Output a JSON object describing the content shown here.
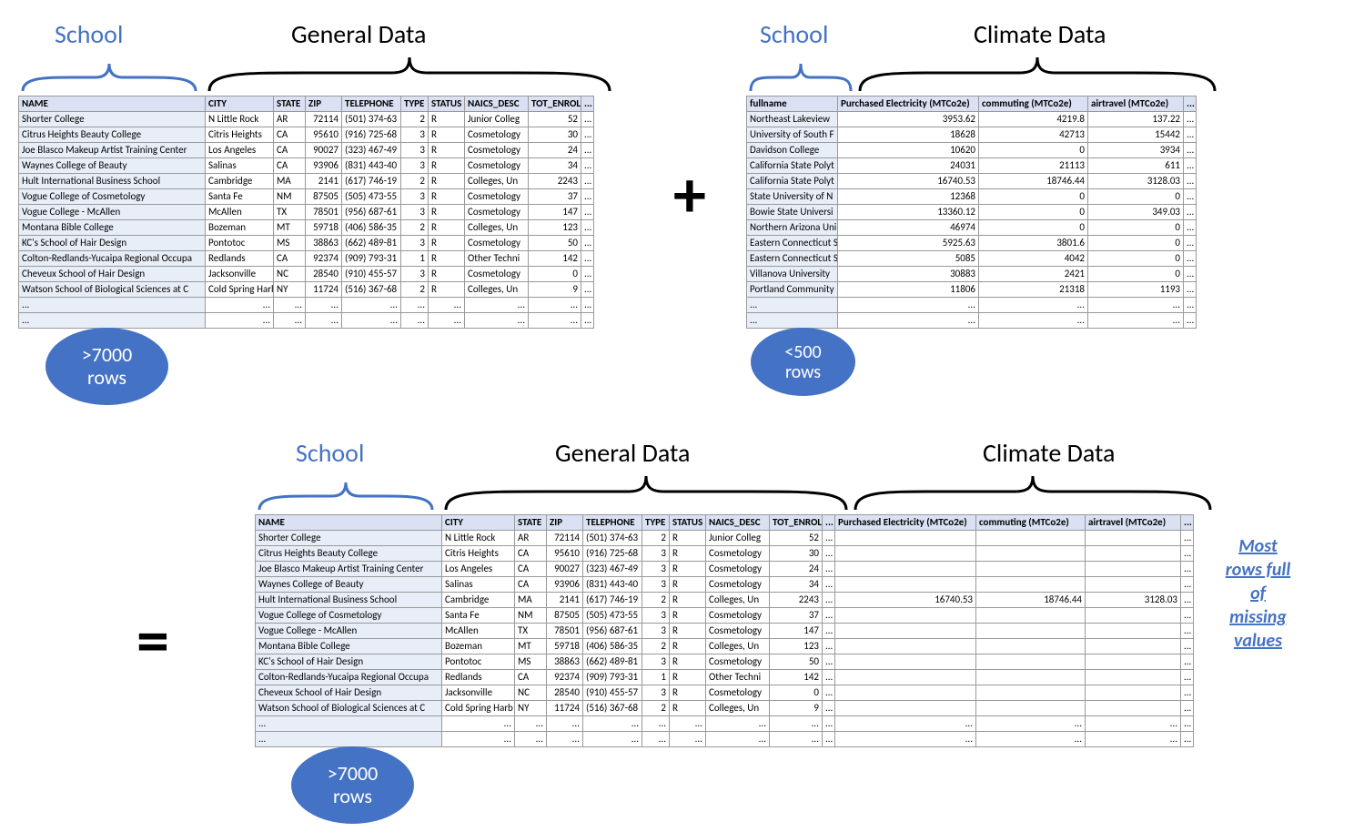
{
  "colors": {
    "accent": "#4472c4",
    "header_bg": "#d9e1f2",
    "name_bg": "#e8eef7",
    "border": "#999999",
    "text": "#000000"
  },
  "labels": {
    "school": "School",
    "general": "General Data",
    "climate": "Climate Data"
  },
  "ovals": {
    "gt7000": ">7000\nrows",
    "lt500": "<500\nrows"
  },
  "callout": "Most\nrows full\nof\nmissing\nvalues",
  "ops": {
    "plus": "+",
    "equals": "="
  },
  "general_table": {
    "headers": [
      "NAME",
      "CITY",
      "STATE",
      "ZIP",
      "TELEPHONE",
      "TYPE",
      "STATUS",
      "NAICS_DESC",
      "TOT_ENROLL",
      "..."
    ],
    "widths": [
      205,
      75,
      35,
      40,
      65,
      30,
      40,
      70,
      58,
      14
    ],
    "rows": [
      [
        "Shorter College",
        "N Little Rock",
        "AR",
        "72114",
        "(501) 374-63",
        "2",
        "R",
        "Junior Colleg",
        "52",
        "..."
      ],
      [
        "Citrus Heights Beauty College",
        "Citris Heights",
        "CA",
        "95610",
        "(916) 725-68",
        "3",
        "R",
        "Cosmetology",
        "30",
        "..."
      ],
      [
        "Joe Blasco Makeup Artist Training Center",
        "Los Angeles",
        "CA",
        "90027",
        "(323) 467-49",
        "3",
        "R",
        "Cosmetology",
        "24",
        "..."
      ],
      [
        "Waynes College of Beauty",
        "Salinas",
        "CA",
        "93906",
        "(831) 443-40",
        "3",
        "R",
        "Cosmetology",
        "34",
        "..."
      ],
      [
        "Hult International Business School",
        "Cambridge",
        "MA",
        "2141",
        "(617) 746-19",
        "2",
        "R",
        "Colleges, Un",
        "2243",
        "..."
      ],
      [
        "Vogue College of Cosmetology",
        "Santa Fe",
        "NM",
        "87505",
        "(505) 473-55",
        "3",
        "R",
        "Cosmetology",
        "37",
        "..."
      ],
      [
        "Vogue College - McAllen",
        "McAllen",
        "TX",
        "78501",
        "(956) 687-61",
        "3",
        "R",
        "Cosmetology",
        "147",
        "..."
      ],
      [
        "Montana Bible College",
        "Bozeman",
        "MT",
        "59718",
        "(406) 586-35",
        "2",
        "R",
        "Colleges, Un",
        "123",
        "..."
      ],
      [
        "KC's School of Hair Design",
        "Pontotoc",
        "MS",
        "38863",
        "(662) 489-81",
        "3",
        "R",
        "Cosmetology",
        "50",
        "..."
      ],
      [
        "Colton-Redlands-Yucaipa Regional Occupa",
        "Redlands",
        "CA",
        "92374",
        "(909) 793-31",
        "1",
        "R",
        "Other Techni",
        "142",
        "..."
      ],
      [
        "Cheveux School of Hair Design",
        "Jacksonville",
        "NC",
        "28540",
        "(910) 455-57",
        "3",
        "R",
        "Cosmetology",
        "0",
        "..."
      ],
      [
        "Watson School of Biological Sciences at C",
        "Cold Spring Harb",
        "NY",
        "11724",
        "(516) 367-68",
        "2",
        "R",
        "Colleges, Un",
        "9",
        "..."
      ],
      [
        "...",
        "...",
        "...",
        "...",
        "...",
        "...",
        "...",
        "...",
        "...",
        "..."
      ],
      [
        "...",
        "...",
        "...",
        "...",
        "...",
        "...",
        "...",
        "...",
        "...",
        "..."
      ]
    ]
  },
  "climate_table": {
    "headers": [
      "fullname",
      "Purchased Electricity (MTCo2e)",
      "commuting (MTCo2e)",
      "airtravel (MTCo2e)",
      "..."
    ],
    "widths": [
      100,
      155,
      120,
      105,
      14
    ],
    "rows": [
      [
        "Northeast Lakeview",
        "3953.62",
        "4219.8",
        "137.22",
        "..."
      ],
      [
        "University of South F",
        "18628",
        "42713",
        "15442",
        "..."
      ],
      [
        "Davidson College",
        "10620",
        "0",
        "3934",
        "..."
      ],
      [
        "California State Polyt",
        "24031",
        "21113",
        "611",
        "..."
      ],
      [
        "California State Polyt",
        "16740.53",
        "18746.44",
        "3128.03",
        "..."
      ],
      [
        "State University of N",
        "12368",
        "0",
        "0",
        "..."
      ],
      [
        "Bowie State Universi",
        "13360.12",
        "0",
        "349.03",
        "..."
      ],
      [
        "Northern Arizona Uni",
        "46974",
        "0",
        "0",
        "..."
      ],
      [
        "Eastern Connecticut S",
        "5925.63",
        "3801.6",
        "0",
        "..."
      ],
      [
        "Eastern Connecticut S",
        "5085",
        "4042",
        "0",
        "..."
      ],
      [
        "Villanova University",
        "30883",
        "2421",
        "0",
        "..."
      ],
      [
        "Portland Community",
        "11806",
        "21318",
        "1193",
        "..."
      ],
      [
        "...",
        "...",
        "...",
        "...",
        "..."
      ],
      [
        "...",
        "...",
        "...",
        "...",
        "..."
      ]
    ]
  },
  "merged_table": {
    "headers": [
      "NAME",
      "CITY",
      "STATE",
      "ZIP",
      "TELEPHONE",
      "TYPE",
      "STATUS",
      "NAICS_DESC",
      "TOT_ENROLL",
      "...",
      "Purchased Electricity (MTCo2e)",
      "commuting (MTCo2e)",
      "airtravel (MTCo2e)",
      "..."
    ],
    "widths": [
      205,
      80,
      35,
      40,
      65,
      30,
      40,
      70,
      58,
      14,
      155,
      120,
      105,
      14
    ],
    "rows": [
      [
        "Shorter College",
        "N Little Rock",
        "AR",
        "72114",
        "(501) 374-63",
        "2",
        "R",
        "Junior Colleg",
        "52",
        "...",
        "",
        "",
        "",
        "..."
      ],
      [
        "Citrus Heights Beauty College",
        "Citris Heights",
        "CA",
        "95610",
        "(916) 725-68",
        "3",
        "R",
        "Cosmetology",
        "30",
        "...",
        "",
        "",
        "",
        "..."
      ],
      [
        "Joe Blasco Makeup Artist Training Center",
        "Los Angeles",
        "CA",
        "90027",
        "(323) 467-49",
        "3",
        "R",
        "Cosmetology",
        "24",
        "...",
        "",
        "",
        "",
        "..."
      ],
      [
        "Waynes College of Beauty",
        "Salinas",
        "CA",
        "93906",
        "(831) 443-40",
        "3",
        "R",
        "Cosmetology",
        "34",
        "...",
        "",
        "",
        "",
        "..."
      ],
      [
        "Hult International Business School",
        "Cambridge",
        "MA",
        "2141",
        "(617) 746-19",
        "2",
        "R",
        "Colleges, Un",
        "2243",
        "...",
        "16740.53",
        "18746.44",
        "3128.03",
        "..."
      ],
      [
        "Vogue College of Cosmetology",
        "Santa Fe",
        "NM",
        "87505",
        "(505) 473-55",
        "3",
        "R",
        "Cosmetology",
        "37",
        "...",
        "",
        "",
        "",
        "..."
      ],
      [
        "Vogue College - McAllen",
        "McAllen",
        "TX",
        "78501",
        "(956) 687-61",
        "3",
        "R",
        "Cosmetology",
        "147",
        "...",
        "",
        "",
        "",
        "..."
      ],
      [
        "Montana Bible College",
        "Bozeman",
        "MT",
        "59718",
        "(406) 586-35",
        "2",
        "R",
        "Colleges, Un",
        "123",
        "...",
        "",
        "",
        "",
        "..."
      ],
      [
        "KC's School of Hair Design",
        "Pontotoc",
        "MS",
        "38863",
        "(662) 489-81",
        "3",
        "R",
        "Cosmetology",
        "50",
        "...",
        "",
        "",
        "",
        "..."
      ],
      [
        "Colton-Redlands-Yucaipa Regional Occupa",
        "Redlands",
        "CA",
        "92374",
        "(909) 793-31",
        "1",
        "R",
        "Other Techni",
        "142",
        "...",
        "",
        "",
        "",
        "..."
      ],
      [
        "Cheveux School of Hair Design",
        "Jacksonville",
        "NC",
        "28540",
        "(910) 455-57",
        "3",
        "R",
        "Cosmetology",
        "0",
        "...",
        "",
        "",
        "",
        "..."
      ],
      [
        "Watson School of Biological Sciences at C",
        "Cold Spring Harb",
        "NY",
        "11724",
        "(516) 367-68",
        "2",
        "R",
        "Colleges, Un",
        "9",
        "...",
        "",
        "",
        "",
        "..."
      ],
      [
        "...",
        "...",
        "...",
        "...",
        "...",
        "...",
        "...",
        "...",
        "...",
        "...",
        "...",
        "...",
        "...",
        "..."
      ],
      [
        "...",
        "...",
        "...",
        "...",
        "...",
        "...",
        "...",
        "...",
        "...",
        "...",
        "...",
        "...",
        "...",
        "..."
      ]
    ]
  }
}
